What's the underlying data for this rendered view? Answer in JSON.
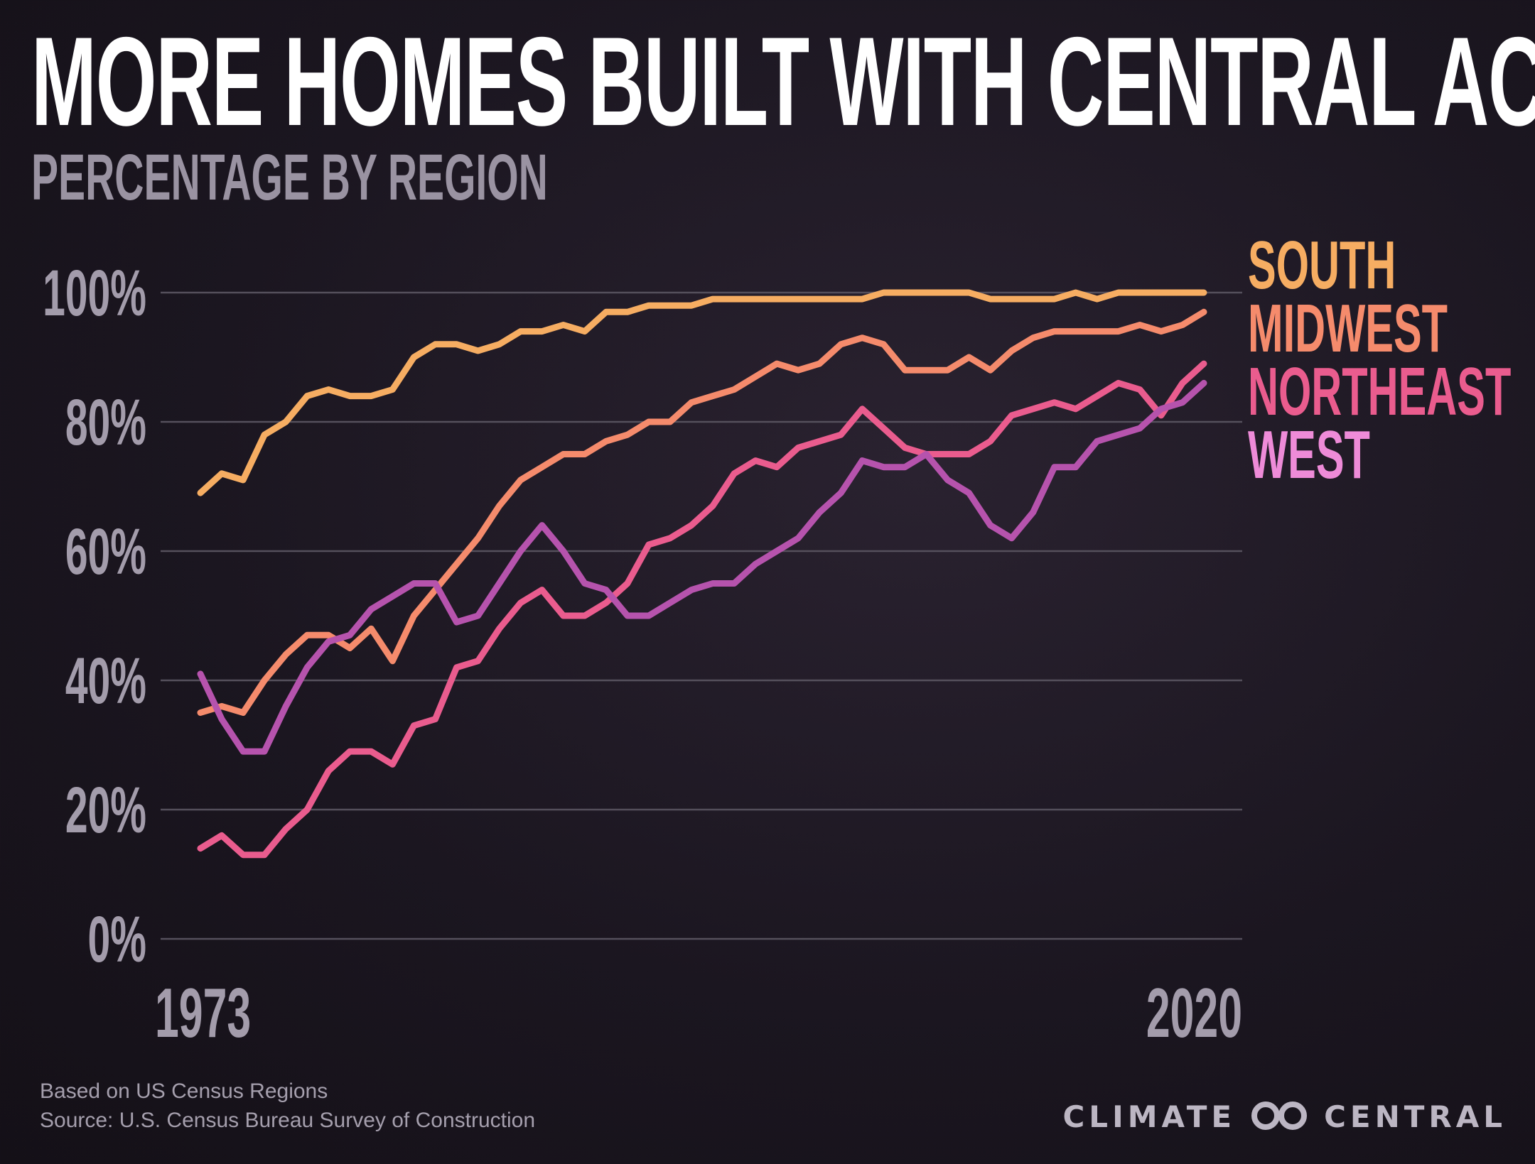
{
  "header": {
    "title": "MORE HOMES BUILT WITH CENTRAL AC",
    "subtitle": "PERCENTAGE BY REGION"
  },
  "footer": {
    "note": "Based on US Census Regions",
    "source": "Source:  U.S. Census Bureau Survey of Construction",
    "brand_left": "CLIMATE",
    "brand_right": "CENTRAL"
  },
  "colors": {
    "south": "#f6ad62",
    "midwest": "#f58b6c",
    "northeast": "#ea5c8e",
    "west": "#b653ad",
    "west_label": "#ee8bd8",
    "grid": "#55505c",
    "tick": "#a39cab"
  },
  "chart_data": {
    "type": "line",
    "title": "MORE HOMES BUILT WITH CENTRAL AC",
    "subtitle": "PERCENTAGE BY REGION",
    "xlabel": "",
    "ylabel": "",
    "x_start": 1973,
    "x_end": 2020,
    "x_tick_labels": [
      "1973",
      "2020"
    ],
    "ylim": [
      0,
      100
    ],
    "y_ticks": [
      0,
      20,
      40,
      60,
      80,
      100
    ],
    "y_tick_labels": [
      "0%",
      "20%",
      "40%",
      "60%",
      "80%",
      "100%"
    ],
    "grid": true,
    "legend_placement": "right",
    "legend": [
      "SOUTH",
      "MIDWEST",
      "NORTHEAST",
      "WEST"
    ],
    "series": [
      {
        "name": "SOUTH",
        "color": "#f6ad62",
        "values": [
          69,
          72,
          71,
          78,
          80,
          84,
          85,
          84,
          84,
          85,
          90,
          92,
          92,
          91,
          92,
          94,
          94,
          95,
          94,
          97,
          97,
          98,
          98,
          98,
          99,
          99,
          99,
          99,
          99,
          99,
          99,
          99,
          100,
          100,
          100,
          100,
          100,
          99,
          99,
          99,
          99,
          100,
          99,
          100,
          100,
          100,
          100,
          100
        ]
      },
      {
        "name": "MIDWEST",
        "color": "#f58b6c",
        "values": [
          35,
          36,
          35,
          40,
          44,
          47,
          47,
          45,
          48,
          43,
          50,
          54,
          58,
          62,
          67,
          71,
          73,
          75,
          75,
          77,
          78,
          80,
          80,
          83,
          84,
          85,
          87,
          89,
          88,
          89,
          92,
          93,
          92,
          88,
          88,
          88,
          90,
          88,
          91,
          93,
          94,
          94,
          94,
          94,
          95,
          94,
          95,
          97
        ]
      },
      {
        "name": "NORTHEAST",
        "color": "#ea5c8e",
        "values": [
          14,
          16,
          13,
          13,
          17,
          20,
          26,
          29,
          29,
          27,
          33,
          34,
          42,
          43,
          48,
          52,
          54,
          50,
          50,
          52,
          55,
          61,
          62,
          64,
          67,
          72,
          74,
          73,
          76,
          77,
          78,
          82,
          79,
          76,
          75,
          75,
          75,
          77,
          81,
          82,
          83,
          82,
          84,
          86,
          85,
          81,
          86,
          89
        ]
      },
      {
        "name": "WEST",
        "color": "#b653ad",
        "values": [
          41,
          34,
          29,
          29,
          36,
          42,
          46,
          47,
          51,
          53,
          55,
          55,
          49,
          50,
          55,
          60,
          64,
          60,
          55,
          54,
          50,
          50,
          52,
          54,
          55,
          55,
          58,
          60,
          62,
          66,
          69,
          74,
          73,
          73,
          75,
          71,
          69,
          64,
          62,
          66,
          73,
          73,
          77,
          78,
          79,
          82,
          83,
          86
        ]
      }
    ]
  }
}
